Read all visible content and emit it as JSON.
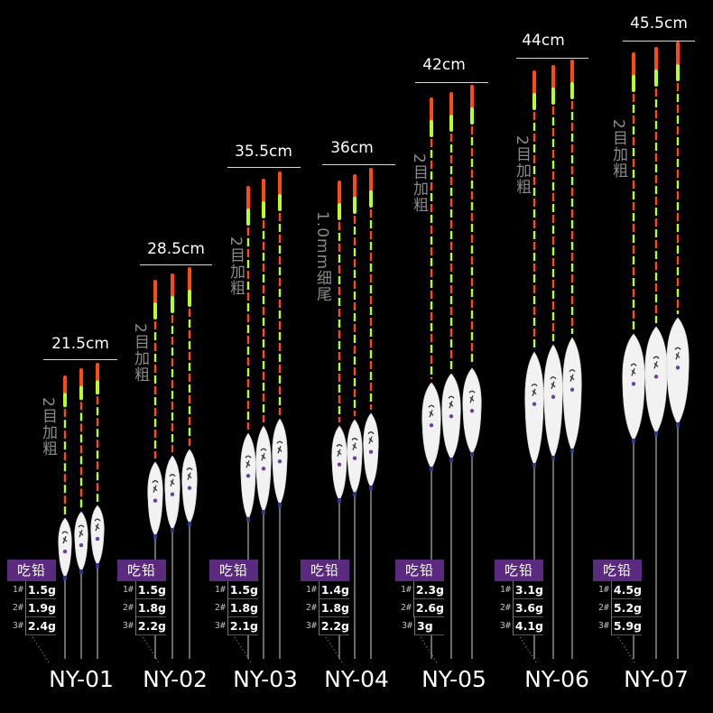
{
  "table_header": "吃铅",
  "products": [
    {
      "model": "NY-01",
      "length": "21.5cm",
      "note": "2目加粗",
      "leads": [
        {
          "idx": "1#",
          "value": "1.5g"
        },
        {
          "idx": "2#",
          "value": "1.9g"
        },
        {
          "idx": "3#",
          "value": "2.4g"
        }
      ]
    },
    {
      "model": "NY-02",
      "length": "28.5cm",
      "note": "2目加粗",
      "leads": [
        {
          "idx": "1#",
          "value": "1.5g"
        },
        {
          "idx": "2#",
          "value": "1.8g"
        },
        {
          "idx": "3#",
          "value": "2.2g"
        }
      ]
    },
    {
      "model": "NY-03",
      "length": "35.5cm",
      "note": "2目加粗",
      "leads": [
        {
          "idx": "1#",
          "value": "1.5g"
        },
        {
          "idx": "2#",
          "value": "1.8g"
        },
        {
          "idx": "3#",
          "value": "2.1g"
        }
      ]
    },
    {
      "model": "NY-04",
      "length": "36cm",
      "note": "1.0mm细尾",
      "leads": [
        {
          "idx": "1#",
          "value": "1.4g"
        },
        {
          "idx": "2#",
          "value": "1.8g"
        },
        {
          "idx": "3#",
          "value": "2.2g"
        }
      ]
    },
    {
      "model": "NY-05",
      "length": "42cm",
      "note": "2目加粗",
      "leads": [
        {
          "idx": "1#",
          "value": "2.3g"
        },
        {
          "idx": "2#",
          "value": "2.6g"
        },
        {
          "idx": "3#",
          "value": "3g"
        }
      ]
    },
    {
      "model": "NY-06",
      "length": "44cm",
      "note": "2目加粗",
      "leads": [
        {
          "idx": "1#",
          "value": "3.1g"
        },
        {
          "idx": "2#",
          "value": "3.6g"
        },
        {
          "idx": "3#",
          "value": "4.1g"
        }
      ]
    },
    {
      "model": "NY-07",
      "length": "45.5cm",
      "note": "2目加粗",
      "leads": [
        {
          "idx": "1#",
          "value": "4.5g"
        },
        {
          "idx": "2#",
          "value": "5.2g"
        },
        {
          "idx": "3#",
          "value": "5.9g"
        }
      ]
    }
  ],
  "colors": {
    "background": "#000000",
    "tip_orange": "#ff4a12",
    "tip_green": "#b8ff2a",
    "body_white": "#f2f2f2",
    "table_header_purple": "#5a2a7e",
    "note_gray": "#8a8a8a"
  }
}
